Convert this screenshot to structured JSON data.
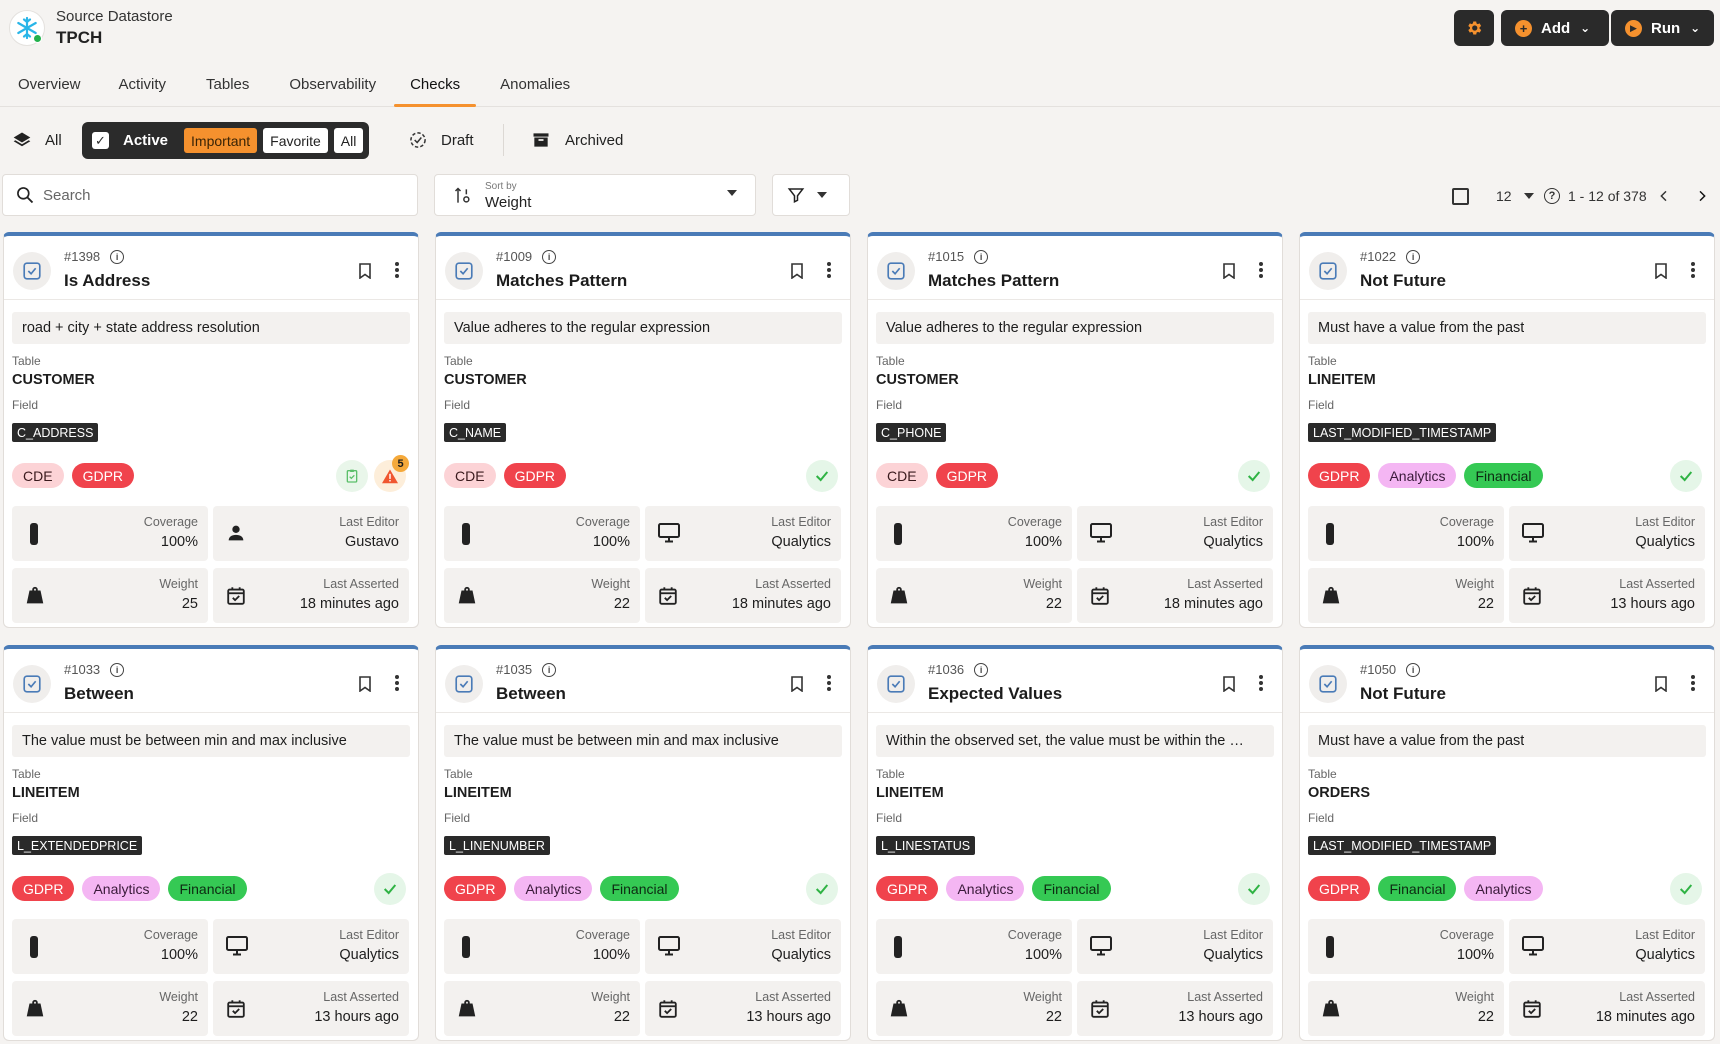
{
  "header": {
    "subtitle": "Source Datastore",
    "title": "TPCH",
    "add_label": "Add",
    "run_label": "Run"
  },
  "tabs": [
    "Overview",
    "Activity",
    "Tables",
    "Observability",
    "Checks",
    "Anomalies"
  ],
  "active_tab": "Checks",
  "filters": {
    "all_label": "All",
    "active_label": "Active",
    "chips": [
      "Important",
      "Favorite",
      "All"
    ],
    "draft_label": "Draft",
    "archived_label": "Archived"
  },
  "search": {
    "placeholder": "Search"
  },
  "sort": {
    "label": "Sort by",
    "value": "Weight"
  },
  "pager": {
    "page_size": "12",
    "range": "1 - 12 of 378"
  },
  "labels": {
    "table": "Table",
    "field": "Field",
    "coverage": "Coverage",
    "last_editor": "Last Editor",
    "weight": "Weight",
    "last_asserted": "Last Asserted"
  },
  "cards": [
    {
      "id": "#1398",
      "name": "Is Address",
      "desc": "road + city + state address resolution",
      "table": "CUSTOMER",
      "field": "C_ADDRESS",
      "tags": [
        "CDE",
        "GDPR"
      ],
      "coverage": "100%",
      "editor": "Gustavo",
      "editor_icon": "person-icon",
      "weight": "25",
      "asserted": "18 minutes ago",
      "status": "warning",
      "anomaly_count": "5"
    },
    {
      "id": "#1009",
      "name": "Matches Pattern",
      "desc": "Value adheres to the regular expression",
      "table": "CUSTOMER",
      "field": "C_NAME",
      "tags": [
        "CDE",
        "GDPR"
      ],
      "coverage": "100%",
      "editor": "Qualytics",
      "editor_icon": "monitor-icon",
      "weight": "22",
      "asserted": "18 minutes ago",
      "status": "ok"
    },
    {
      "id": "#1015",
      "name": "Matches Pattern",
      "desc": "Value adheres to the regular expression",
      "table": "CUSTOMER",
      "field": "C_PHONE",
      "tags": [
        "CDE",
        "GDPR"
      ],
      "coverage": "100%",
      "editor": "Qualytics",
      "editor_icon": "monitor-icon",
      "weight": "22",
      "asserted": "18 minutes ago",
      "status": "ok"
    },
    {
      "id": "#1022",
      "name": "Not Future",
      "desc": "Must have a value from the past",
      "table": "LINEITEM",
      "field": "LAST_MODIFIED_TIMESTAMP",
      "tags": [
        "GDPR",
        "Analytics",
        "Financial"
      ],
      "coverage": "100%",
      "editor": "Qualytics",
      "editor_icon": "monitor-icon",
      "weight": "22",
      "asserted": "13 hours ago",
      "status": "ok"
    },
    {
      "id": "#1033",
      "name": "Between",
      "desc": "The value must be between min and max inclusive",
      "table": "LINEITEM",
      "field": "L_EXTENDEDPRICE",
      "tags": [
        "GDPR",
        "Analytics",
        "Financial"
      ],
      "coverage": "100%",
      "editor": "Qualytics",
      "editor_icon": "monitor-icon",
      "weight": "22",
      "asserted": "13 hours ago",
      "status": "ok"
    },
    {
      "id": "#1035",
      "name": "Between",
      "desc": "The value must be between min and max inclusive",
      "table": "LINEITEM",
      "field": "L_LINENUMBER",
      "tags": [
        "GDPR",
        "Analytics",
        "Financial"
      ],
      "coverage": "100%",
      "editor": "Qualytics",
      "editor_icon": "monitor-icon",
      "weight": "22",
      "asserted": "13 hours ago",
      "status": "ok"
    },
    {
      "id": "#1036",
      "name": "Expected Values",
      "desc": "Within the observed set, the value must be within the …",
      "table": "LINEITEM",
      "field": "L_LINESTATUS",
      "tags": [
        "GDPR",
        "Analytics",
        "Financial"
      ],
      "coverage": "100%",
      "editor": "Qualytics",
      "editor_icon": "monitor-icon",
      "weight": "22",
      "asserted": "13 hours ago",
      "status": "ok"
    },
    {
      "id": "#1050",
      "name": "Not Future",
      "desc": "Must have a value from the past",
      "table": "ORDERS",
      "field": "LAST_MODIFIED_TIMESTAMP",
      "tags": [
        "GDPR",
        "Financial",
        "Analytics"
      ],
      "coverage": "100%",
      "editor": "Qualytics",
      "editor_icon": "monitor-icon",
      "weight": "22",
      "asserted": "18 minutes ago",
      "status": "ok"
    }
  ]
}
